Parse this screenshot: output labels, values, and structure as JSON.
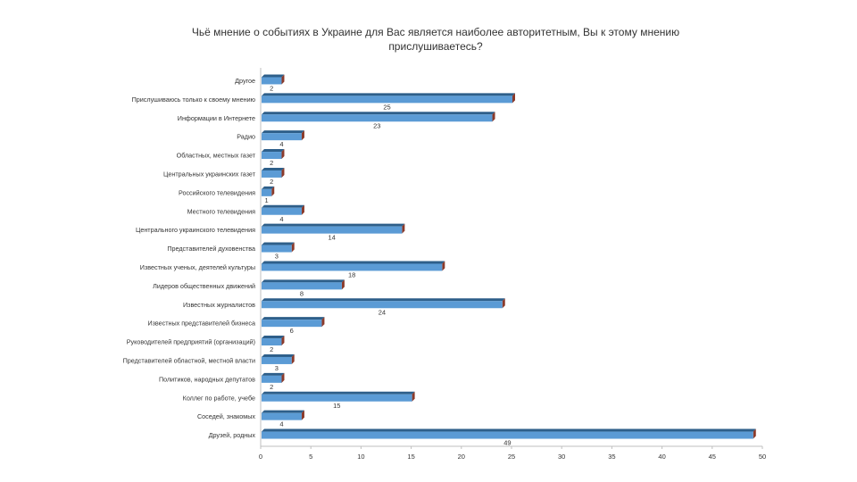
{
  "chart_data": {
    "type": "bar",
    "orientation": "horizontal",
    "title_lines": [
      "Чьё мнение о событиях в Украине для Вас является наиболее авторитетным, Вы к этому мнению",
      "прислушиваетесь?"
    ],
    "categories": [
      "Другое",
      "Прислушиваюсь только к своему мнению",
      "Информации в Интернете",
      "Радио",
      "Областных, местных газет",
      "Центральных украинских газет",
      "Российского телевидения",
      "Местного телевидения",
      "Центрального украинского телевидения",
      "Представителей духовенства",
      "Известных ученых, деятелей культуры",
      "Лидеров общественных движений",
      "Известных журналистов",
      "Известных представителей бизнеса",
      "Руководителей предприятий (организаций)",
      "Представителей областной, местной власти",
      "Политиков, народных депутатов",
      "Коллег по работе, учебе",
      "Соседей, знакомых",
      "Друзей, родных"
    ],
    "values": [
      2,
      25,
      23,
      4,
      2,
      2,
      1,
      4,
      14,
      3,
      18,
      8,
      24,
      6,
      2,
      3,
      2,
      15,
      4,
      49
    ],
    "xlim": [
      0,
      50
    ],
    "xticks": [
      0,
      5,
      10,
      15,
      20,
      25,
      30,
      35,
      40,
      45,
      50
    ],
    "grid": false,
    "legend": "none",
    "colors": {
      "bar_front": "#5b9bd5",
      "bar_top": "#2e5f8a",
      "bar_side": "#8b3a2a",
      "axis": "#bfbfbf"
    }
  }
}
